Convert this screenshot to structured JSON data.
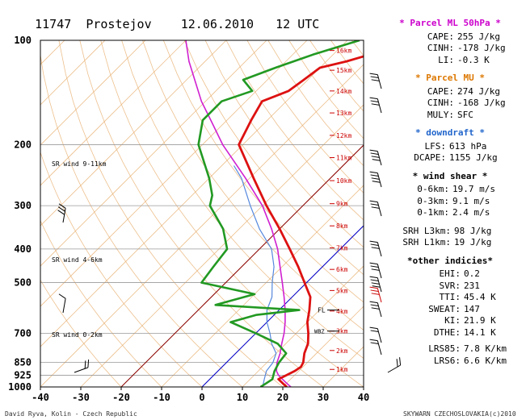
{
  "header": {
    "station": "11747",
    "place": "Prostejov",
    "date": "12.06.2010",
    "time": "12 UTC"
  },
  "colors": {
    "temperature": "#dd1111",
    "parcel": "#d020d0",
    "dewpoint": "#229922",
    "wetbulb": "#5588dd",
    "isotherm_0": "#0000cc",
    "isotherm_minus20": "#880000",
    "dry_adiabat": "#e8b070",
    "header_ml": "#cc00cc",
    "header_mu": "#dd7700",
    "header_down": "#2266cc",
    "height_labels": "#cc0000"
  },
  "chart_data": {
    "type": "skew-t",
    "x_ticks": [
      -40,
      -30,
      -20,
      -10,
      0,
      10,
      20,
      30,
      40
    ],
    "xlim": [
      -40,
      40
    ],
    "pressure_levels": [
      100,
      200,
      300,
      400,
      500,
      700,
      850,
      925,
      1000
    ],
    "ylim": [
      1000,
      100
    ],
    "height_labels": [
      "16km",
      "15km",
      "14km",
      "13km",
      "12km",
      "11km",
      "10km",
      "9km",
      "8km",
      "7km",
      "6km",
      "5km",
      "4km",
      "3km",
      "2km",
      "1km"
    ],
    "height_pressures": [
      107,
      122,
      140,
      162,
      188,
      218,
      254,
      296,
      343,
      397,
      458,
      527,
      604,
      690,
      785,
      890
    ],
    "temperature": [
      [
        1000,
        21
      ],
      [
        975,
        19
      ],
      [
        950,
        17
      ],
      [
        925,
        18
      ],
      [
        900,
        19
      ],
      [
        875,
        19.5
      ],
      [
        850,
        19
      ],
      [
        800,
        17
      ],
      [
        750,
        15.5
      ],
      [
        700,
        13
      ],
      [
        650,
        10
      ],
      [
        600,
        7.5
      ],
      [
        550,
        4.5
      ],
      [
        500,
        -0.5
      ],
      [
        450,
        -6
      ],
      [
        400,
        -12.5
      ],
      [
        350,
        -20
      ],
      [
        300,
        -29
      ],
      [
        250,
        -39
      ],
      [
        200,
        -51
      ],
      [
        170,
        -54
      ],
      [
        150,
        -56
      ],
      [
        140,
        -52
      ],
      [
        130,
        -51
      ],
      [
        120,
        -50
      ],
      [
        115,
        -45
      ],
      [
        110,
        -41
      ],
      [
        100,
        -36
      ]
    ],
    "dewpoint": [
      [
        1000,
        14.5
      ],
      [
        975,
        15
      ],
      [
        950,
        15.5
      ],
      [
        900,
        14
      ],
      [
        850,
        13
      ],
      [
        800,
        12.5
      ],
      [
        750,
        8
      ],
      [
        700,
        0
      ],
      [
        650,
        -9
      ],
      [
        620,
        -4.5
      ],
      [
        600,
        5
      ],
      [
        580,
        -17
      ],
      [
        540,
        -10
      ],
      [
        500,
        -26
      ],
      [
        450,
        -27
      ],
      [
        400,
        -28
      ],
      [
        350,
        -34
      ],
      [
        300,
        -43
      ],
      [
        280,
        -45
      ],
      [
        250,
        -50
      ],
      [
        200,
        -61
      ],
      [
        170,
        -66
      ],
      [
        150,
        -66
      ],
      [
        140,
        -61
      ],
      [
        130,
        -66
      ],
      [
        120,
        -61
      ],
      [
        110,
        -55
      ],
      [
        100,
        -47
      ]
    ],
    "parcel": [
      [
        1000,
        22
      ],
      [
        975,
        20
      ],
      [
        950,
        18
      ],
      [
        925,
        16
      ],
      [
        900,
        14.5
      ],
      [
        850,
        12.5
      ],
      [
        800,
        11
      ],
      [
        750,
        9
      ],
      [
        700,
        7
      ],
      [
        650,
        4.5
      ],
      [
        600,
        1.5
      ],
      [
        550,
        -2
      ],
      [
        500,
        -6
      ],
      [
        450,
        -10.5
      ],
      [
        400,
        -15.5
      ],
      [
        350,
        -22
      ],
      [
        300,
        -30
      ],
      [
        250,
        -41
      ],
      [
        200,
        -55
      ],
      [
        170,
        -64
      ],
      [
        150,
        -71
      ],
      [
        130,
        -78
      ],
      [
        115,
        -84
      ],
      [
        100,
        -90
      ]
    ],
    "wetbulb": [
      [
        1000,
        15
      ],
      [
        950,
        13.5
      ],
      [
        900,
        12
      ],
      [
        850,
        11.5
      ],
      [
        800,
        10
      ],
      [
        750,
        6.5
      ],
      [
        700,
        3.5
      ],
      [
        650,
        0
      ],
      [
        600,
        -3
      ],
      [
        550,
        -5
      ],
      [
        500,
        -8.5
      ],
      [
        450,
        -12
      ],
      [
        400,
        -17
      ],
      [
        350,
        -25
      ],
      [
        300,
        -33
      ],
      [
        250,
        -42
      ],
      [
        230,
        -47
      ]
    ],
    "isotherm_zero_label": "WBZ",
    "fl_label": "FL",
    "annotations": [
      "SR wind 9-11km",
      "SR wind 4-6km",
      "SR wind 0-2km"
    ]
  },
  "panel": {
    "ml_title": "* Parcel ML 50hPa *",
    "ml_rows": [
      [
        "CAPE:",
        "255 J/kg"
      ],
      [
        "CINH:",
        "-178 J/kg"
      ],
      [
        "LI:",
        "-0.3 K"
      ]
    ],
    "mu_title": "* Parcel MU *",
    "mu_rows": [
      [
        "CAPE:",
        "274 J/kg"
      ],
      [
        "CINH:",
        "-168 J/kg"
      ],
      [
        "MULY:",
        "SFC"
      ]
    ],
    "down_title": "* downdraft *",
    "down_rows": [
      [
        "LFS:",
        "613 hPa"
      ],
      [
        "DCAPE:",
        "1155 J/kg"
      ]
    ],
    "shear_title": "* wind shear *",
    "shear_rows": [
      [
        "0-6km:",
        "19.7 m/s"
      ],
      [
        "0-3km:",
        "9.1 m/s"
      ],
      [
        "0-1km:",
        "2.4 m/s"
      ]
    ],
    "srh_rows": [
      [
        "SRH L3km:",
        "98 J/kg"
      ],
      [
        "SRH L1km:",
        "19 J/kg"
      ]
    ],
    "ind_title": "*other indicies*",
    "ind_rows": [
      [
        "EHI:",
        "0.2"
      ],
      [
        "SVR:",
        "231"
      ],
      [
        "TTI:",
        "45.4 K"
      ],
      [
        "SWEAT:",
        "147"
      ],
      [
        "KI:",
        "21.9 K"
      ],
      [
        "DTHE:",
        "14.1 K"
      ]
    ],
    "lr_rows": [
      [
        "LRS85:",
        "7.8 K/km"
      ],
      [
        "LRS6:",
        "6.6 K/km"
      ]
    ]
  },
  "footer": {
    "author": "David Ryva, Kolin - Czech Republic",
    "credit": "SKYWARN CZECHOSLOVAKIA(c)2010"
  }
}
